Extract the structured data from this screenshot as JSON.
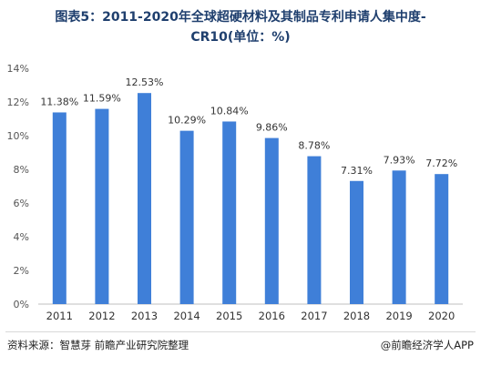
{
  "title_line1": "图表5：2011-2020年全球超硬材料及其制品专利申请人集中度-",
  "title_line2": "CR10(单位：%)",
  "chart_data": {
    "type": "bar",
    "categories": [
      "2011",
      "2012",
      "2013",
      "2014",
      "2015",
      "2016",
      "2017",
      "2018",
      "2019",
      "2020"
    ],
    "values": [
      11.38,
      11.59,
      12.53,
      10.29,
      10.84,
      9.86,
      8.78,
      7.31,
      7.93,
      7.72
    ],
    "data_labels": [
      "11.38%",
      "11.59%",
      "12.53%",
      "10.29%",
      "10.84%",
      "9.86%",
      "8.78%",
      "7.31%",
      "7.93%",
      "7.72%"
    ],
    "yticks": [
      "0%",
      "2%",
      "4%",
      "6%",
      "8%",
      "10%",
      "12%",
      "14%"
    ],
    "ylim": [
      0,
      14
    ],
    "grid": false,
    "bar_color": "#3f7fd8"
  },
  "footer": {
    "source": "资料来源：智慧芽 前瞻产业研究院整理",
    "brand": "@前瞻经济学人APP"
  }
}
